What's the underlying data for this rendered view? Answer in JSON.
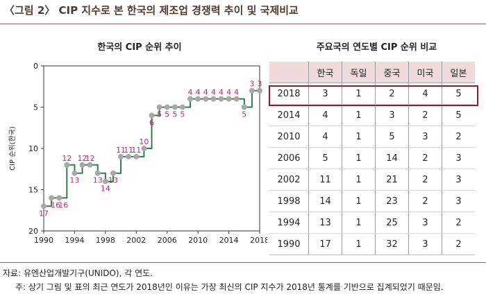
{
  "figure_title": "〈그림 2〉 CIP 지수로 본 한국의 제조업 경쟁력 추이 및 국제비교",
  "chart_data": {
    "type": "line",
    "title": "한국의 CIP 순위 추이",
    "ylabel": "CIP 순위(한국)",
    "xlabel": "",
    "step": true,
    "y_inverted": true,
    "ylim": [
      0,
      20
    ],
    "xlim": [
      1990,
      2018
    ],
    "xticks": [
      "1990",
      "1994",
      "1998",
      "2002",
      "2006",
      "2010",
      "2014",
      "2018"
    ],
    "yticks": [
      "0",
      "5",
      "10",
      "15",
      "20"
    ],
    "grid": false,
    "colors": {
      "line": "#2e7d4a",
      "marker": "#a8a8a8",
      "label": "#b0306a"
    },
    "series": [
      {
        "x": [
          1990,
          1991,
          1992,
          1993,
          1994,
          1995,
          1996,
          1997,
          1998,
          1999,
          2000,
          2001,
          2002,
          2003,
          2004,
          2005,
          2006,
          2007,
          2008,
          2009,
          2010,
          2011,
          2012,
          2013,
          2014,
          2015,
          2016,
          2017,
          2018
        ],
        "values": [
          17,
          16,
          16,
          12,
          13,
          12,
          12,
          13,
          14,
          13,
          11,
          11,
          11,
          10,
          6,
          5,
          5,
          5,
          5,
          4,
          4,
          4,
          4,
          4,
          4,
          4,
          5,
          3,
          3
        ]
      }
    ],
    "point_labels": [
      "17",
      "16",
      "16",
      "12",
      "13",
      "12",
      "12",
      "13",
      "14",
      "13",
      "11",
      "11",
      "11",
      "10",
      "6",
      "5",
      "5",
      "5",
      "5",
      "4",
      "4",
      "4",
      "4",
      "4",
      "4",
      "4",
      "5",
      "3",
      "3"
    ]
  },
  "table": {
    "title": "주요국의 연도별 CIP 순위 비교",
    "columns": [
      "",
      "한국",
      "독일",
      "중국",
      "미국",
      "일본"
    ],
    "rows": [
      [
        "2018",
        "3",
        "1",
        "2",
        "4",
        "5"
      ],
      [
        "2014",
        "4",
        "1",
        "3",
        "2",
        "5"
      ],
      [
        "2010",
        "4",
        "1",
        "5",
        "3",
        "2"
      ],
      [
        "2006",
        "5",
        "1",
        "14",
        "2",
        "3"
      ],
      [
        "2002",
        "11",
        "1",
        "21",
        "2",
        "3"
      ],
      [
        "1998",
        "14",
        "1",
        "23",
        "2",
        "3"
      ],
      [
        "1994",
        "13",
        "1",
        "25",
        "3",
        "2"
      ],
      [
        "1990",
        "17",
        "1",
        "32",
        "3",
        "2"
      ]
    ],
    "highlight_row": "2018",
    "highlight_color": "#8b1f2a"
  },
  "notes": {
    "source": "자료: 유엔산업개발기구(UNIDO), 각 연도.",
    "note": "주: 상기 그림 및 표의 최근 연도가 2018년인 이유는 가장 최신의 CIP 지수가 2018년 통계를 기반으로 집계되었기 때문임."
  }
}
